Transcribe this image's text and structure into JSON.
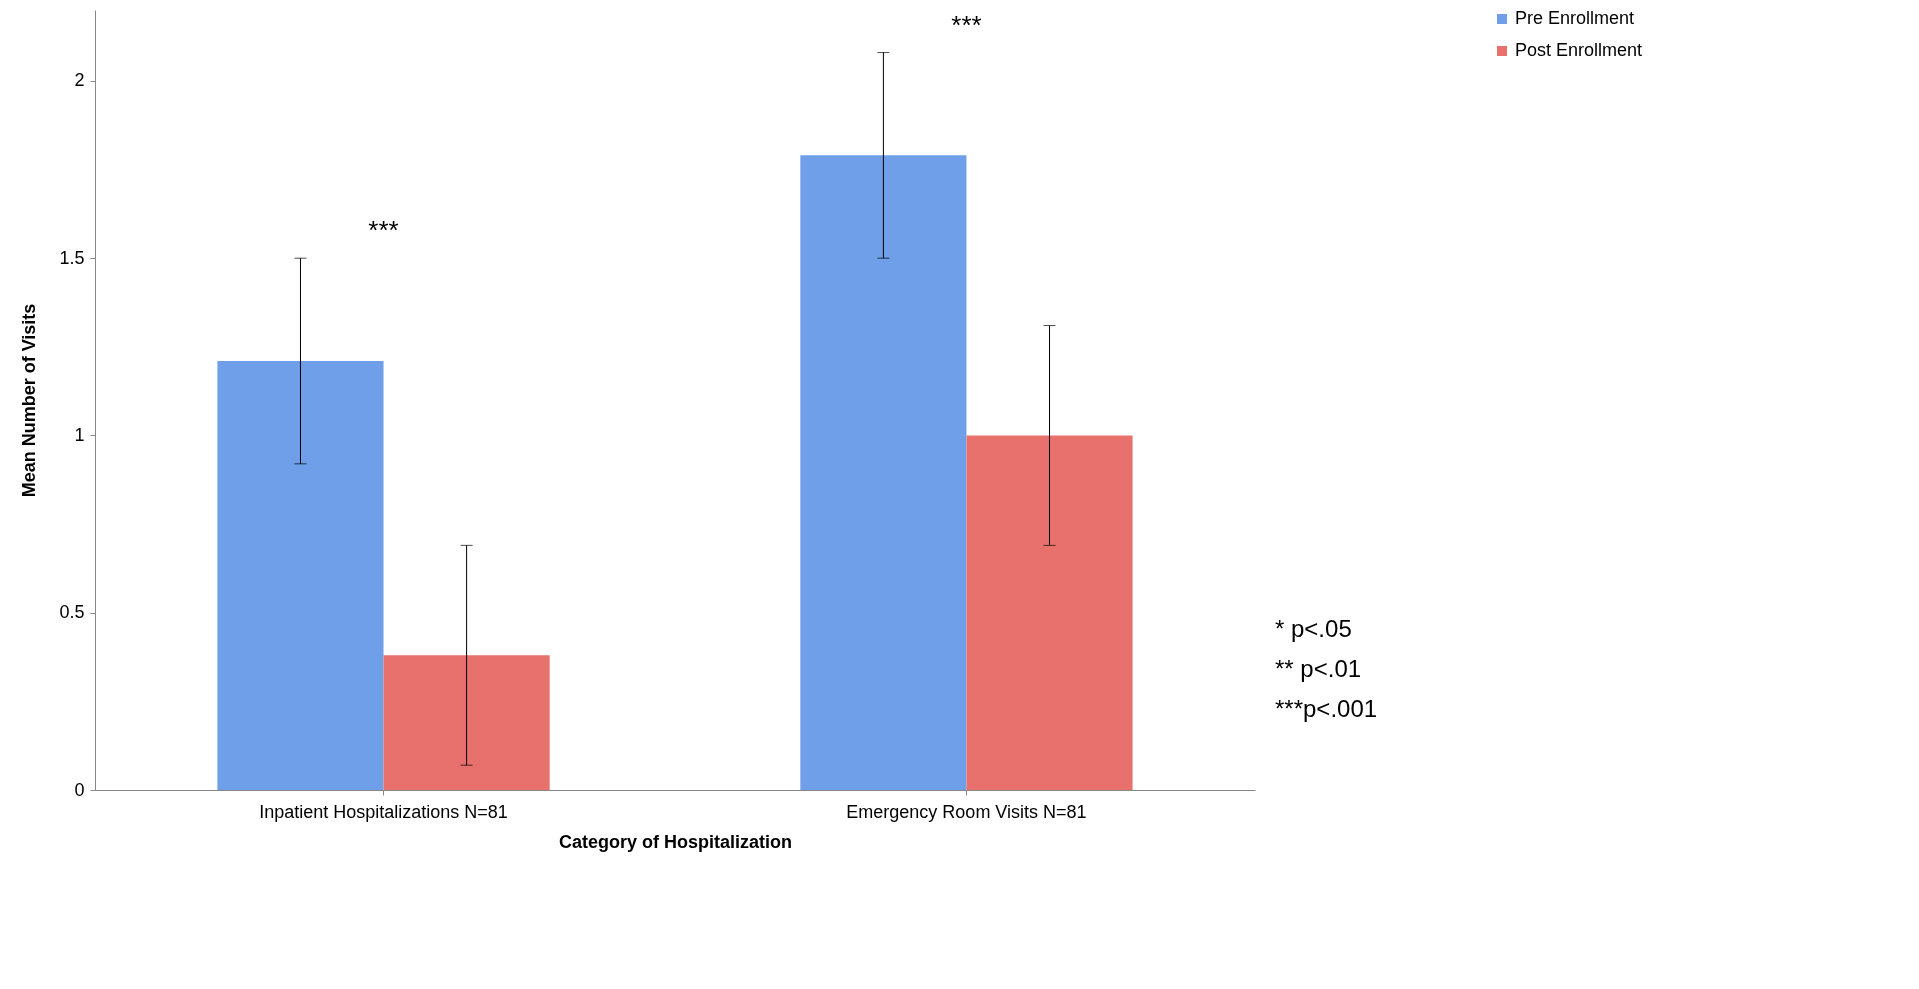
{
  "chart_data": {
    "type": "bar",
    "xlabel": "Category of Hospitalization",
    "ylabel": "Mean Number of Visits",
    "categories": [
      "Inpatient Hospitalizations N=81",
      "Emergency Room Visits N=81"
    ],
    "series": [
      {
        "name": "Pre Enrollment",
        "color": "#6e9fe8",
        "values": [
          1.21,
          1.79
        ],
        "errors": [
          [
            0.92,
            1.5
          ],
          [
            1.5,
            2.08
          ]
        ]
      },
      {
        "name": "Post Enrollment",
        "color": "#e9716d",
        "values": [
          0.38,
          1.0
        ],
        "errors": [
          [
            0.07,
            0.69
          ],
          [
            0.69,
            1.31
          ]
        ]
      }
    ],
    "ylim": [
      0,
      2.2
    ],
    "yticks": [
      0,
      0.5,
      1,
      1.5,
      2
    ],
    "grid": false,
    "legend": "right",
    "annotations": [
      "***",
      "***",
      "*    p<.05",
      "**  p<.01",
      "***p<.001"
    ]
  }
}
